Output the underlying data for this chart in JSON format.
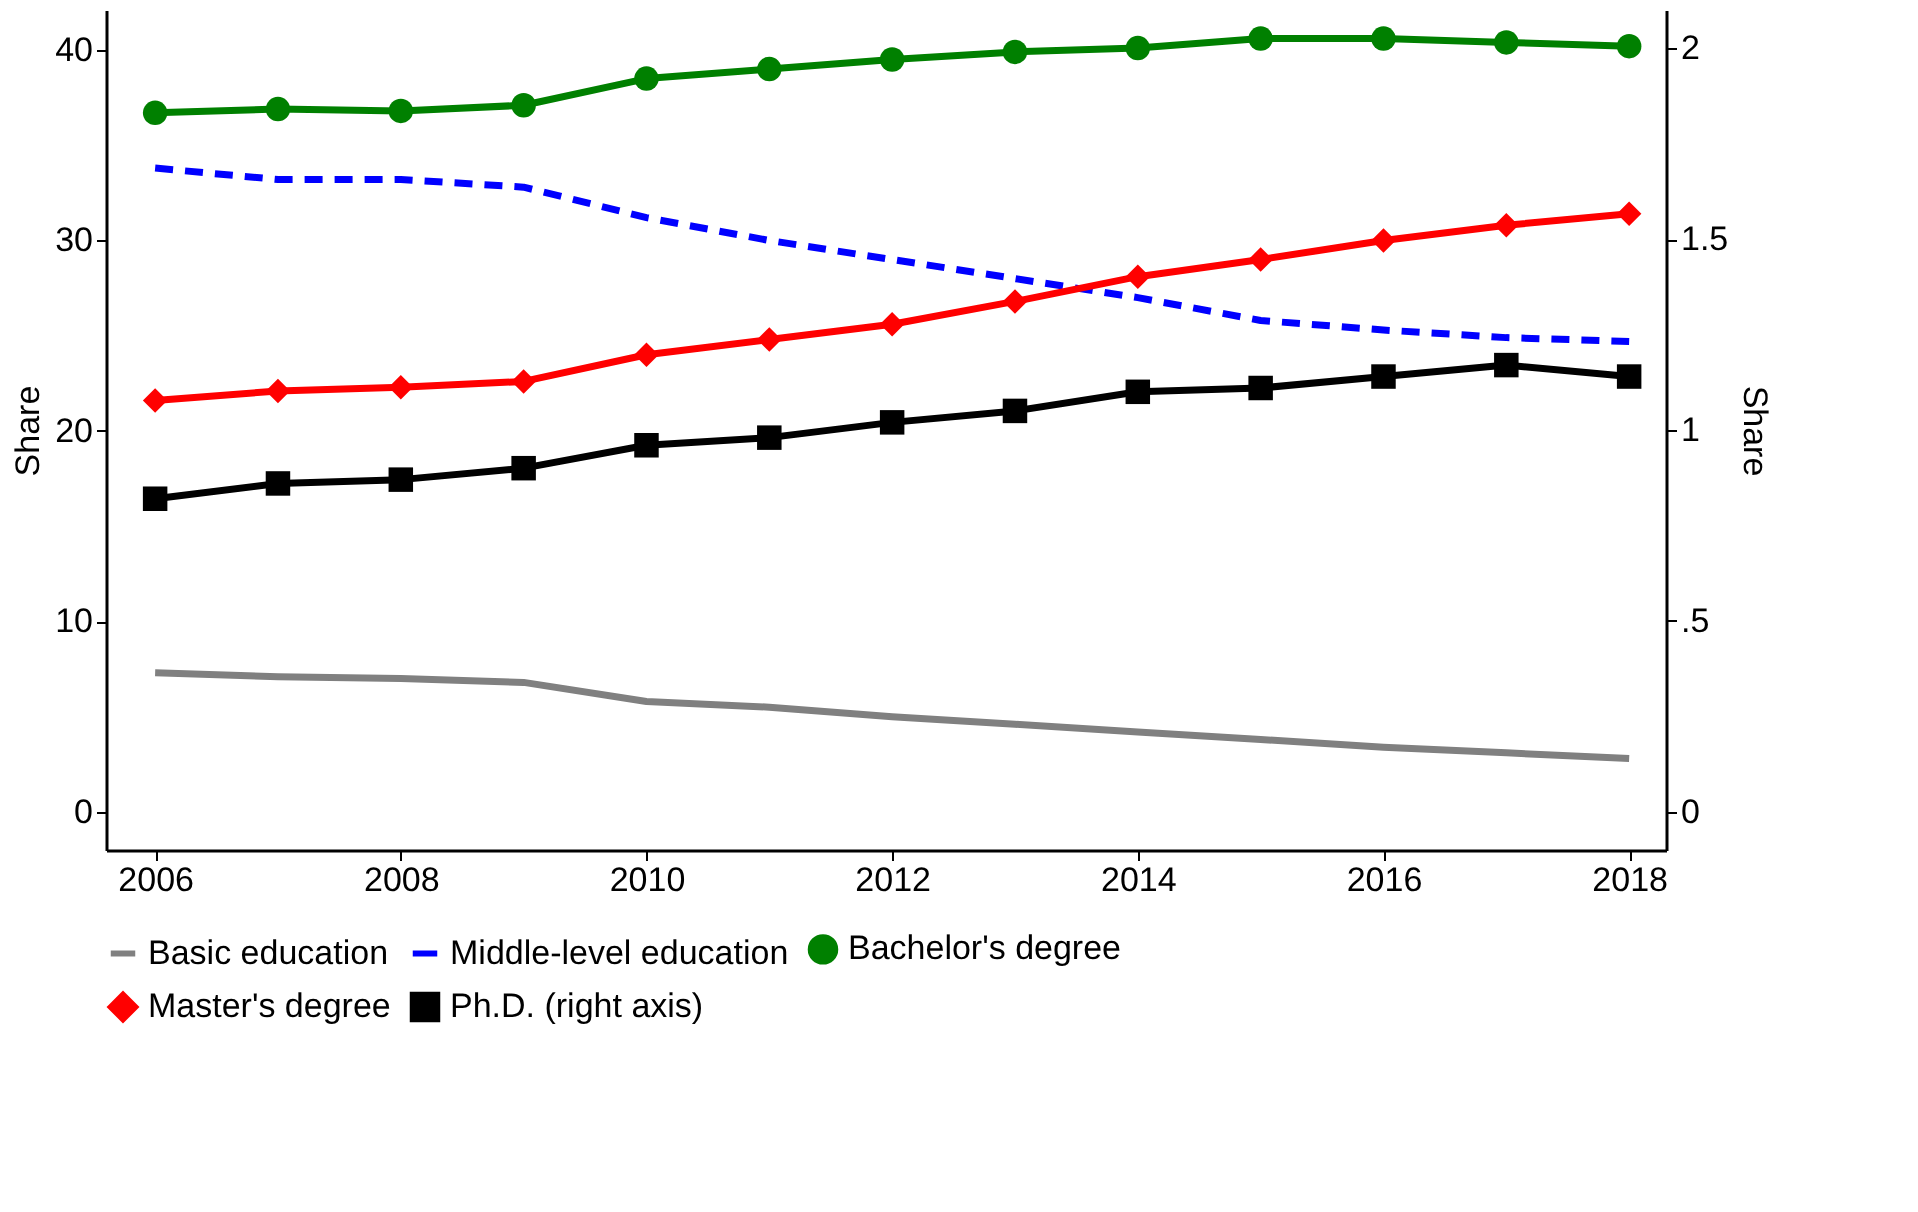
{
  "chart_data": {
    "type": "line",
    "x": [
      2006,
      2007,
      2008,
      2009,
      2010,
      2011,
      2012,
      2013,
      2014,
      2015,
      2016,
      2017,
      2018
    ],
    "xlim": [
      2005.6,
      2018.3
    ],
    "xticks": [
      2006,
      2008,
      2010,
      2012,
      2014,
      2016,
      2018
    ],
    "ylim": [
      -2,
      42.1
    ],
    "yticks": [
      0,
      10,
      20,
      30,
      40
    ],
    "ylabel": "Share",
    "y2lim": [
      -0.1,
      2.1
    ],
    "y2ticks": [
      0,
      {
        "value": 0.5,
        "label": ".5"
      },
      1,
      1.5,
      2
    ],
    "y2label": "Share",
    "grid": false,
    "legend": "bottom",
    "series": [
      {
        "name": "Basic education",
        "color": "#808080",
        "marker": "none",
        "line_style": "solid",
        "values": [
          7.3,
          7.1,
          7.0,
          6.8,
          5.8,
          5.5,
          5.0,
          4.6,
          4.2,
          3.8,
          3.4,
          3.1,
          2.8
        ]
      },
      {
        "name": "Middle-level education",
        "color": "#0000ff",
        "marker": "none",
        "line_style": "dashed",
        "values": [
          33.8,
          33.2,
          33.2,
          32.8,
          31.2,
          30.0,
          29.0,
          28.0,
          27.0,
          25.8,
          25.3,
          24.9,
          24.7
        ]
      },
      {
        "name": "Bachelor's degree",
        "color": "#008000",
        "marker": "circle",
        "line_style": "solid",
        "values": [
          36.7,
          36.9,
          36.8,
          37.1,
          38.5,
          39.0,
          39.5,
          39.9,
          40.1,
          40.6,
          40.6,
          40.4,
          40.2
        ]
      },
      {
        "name": "Master's degree",
        "color": "#ff0000",
        "marker": "diamond",
        "line_style": "solid",
        "values": [
          21.6,
          22.1,
          22.3,
          22.6,
          24.0,
          24.8,
          25.6,
          26.8,
          28.1,
          29.0,
          30.0,
          30.8,
          31.4
        ]
      },
      {
        "name": "Ph.D. (right axis)",
        "color": "#000000",
        "marker": "square",
        "line_style": "solid",
        "axis": "y2",
        "values": [
          0.82,
          0.86,
          0.87,
          0.9,
          0.96,
          0.98,
          1.02,
          1.05,
          1.1,
          1.11,
          1.14,
          1.17,
          1.14
        ]
      }
    ]
  }
}
